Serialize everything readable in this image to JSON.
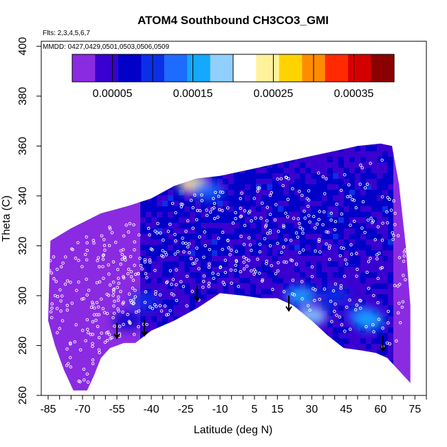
{
  "chart_data": {
    "type": "heatmap",
    "title": "ATOM4 Southbound CH3CO3_GMI",
    "flights_label": "Flts: 2,3,4,5,6,7",
    "dates_label": "MMDD: 0427,0429,0501,0503,0506,0509",
    "xlabel": "Latitude (deg N)",
    "ylabel": "Theta (C)",
    "xlim": [
      -88,
      80
    ],
    "ylim": [
      260,
      402
    ],
    "x_ticks": [
      -85,
      -70,
      -55,
      -40,
      -25,
      -10,
      5,
      15,
      30,
      45,
      60,
      75
    ],
    "x_ticks_labels": [
      "-85",
      "-70",
      "-55",
      "-40",
      "-25",
      "-10",
      "5",
      "15",
      "30",
      "45",
      "60",
      "75"
    ],
    "y_ticks": [
      260,
      280,
      300,
      320,
      340,
      360,
      380,
      400
    ],
    "y_ticks_labels": [
      "260",
      "280",
      "300",
      "320",
      "340",
      "360",
      "380",
      "400"
    ],
    "colorbar": {
      "range": [
        0,
        0.0004
      ],
      "ticks": [
        5e-05,
        0.00015,
        0.00025,
        0.00035
      ],
      "tick_labels": [
        "0.00005",
        "0.00015",
        "0.00025",
        "0.00035"
      ],
      "colors": [
        "#8a2be2",
        "#3a00d0",
        "#0000c8",
        "#0b2fe6",
        "#1e6bff",
        "#14a8ff",
        "#8fd0ff",
        "#ffffff",
        "#fff29a",
        "#ffd300",
        "#ff8c00",
        "#ff2a00",
        "#d40000",
        "#8b0000"
      ]
    },
    "upper_boundary": [
      {
        "lat": -84,
        "theta": 322
      },
      {
        "lat": -75,
        "theta": 327
      },
      {
        "lat": -62,
        "theta": 333
      },
      {
        "lat": -50,
        "theta": 336
      },
      {
        "lat": -40,
        "theta": 339
      },
      {
        "lat": -30,
        "theta": 344
      },
      {
        "lat": -20,
        "theta": 347
      },
      {
        "lat": -10,
        "theta": 348
      },
      {
        "lat": 0,
        "theta": 350
      },
      {
        "lat": 10,
        "theta": 352
      },
      {
        "lat": 20,
        "theta": 354
      },
      {
        "lat": 30,
        "theta": 356
      },
      {
        "lat": 40,
        "theta": 358
      },
      {
        "lat": 50,
        "theta": 360
      },
      {
        "lat": 60,
        "theta": 361
      },
      {
        "lat": 65,
        "theta": 360
      },
      {
        "lat": 68,
        "theta": 345
      },
      {
        "lat": 71,
        "theta": 320
      },
      {
        "lat": 73,
        "theta": 296
      }
    ],
    "lower_boundary": [
      {
        "lat": 73,
        "theta": 265
      },
      {
        "lat": 68,
        "theta": 270
      },
      {
        "lat": 63,
        "theta": 275
      },
      {
        "lat": 58,
        "theta": 277
      },
      {
        "lat": 52,
        "theta": 278
      },
      {
        "lat": 44,
        "theta": 279
      },
      {
        "lat": 37,
        "theta": 284
      },
      {
        "lat": 30,
        "theta": 290
      },
      {
        "lat": 22,
        "theta": 296
      },
      {
        "lat": 15,
        "theta": 299
      },
      {
        "lat": 8,
        "theta": 299
      },
      {
        "lat": 0,
        "theta": 300
      },
      {
        "lat": -10,
        "theta": 301
      },
      {
        "lat": -20,
        "theta": 295
      },
      {
        "lat": -30,
        "theta": 290
      },
      {
        "lat": -40,
        "theta": 286
      },
      {
        "lat": -47,
        "theta": 281
      },
      {
        "lat": -52,
        "theta": 281
      },
      {
        "lat": -55,
        "theta": 280
      },
      {
        "lat": -58,
        "theta": 279
      },
      {
        "lat": -62,
        "theta": 275
      },
      {
        "lat": -65,
        "theta": 268
      },
      {
        "lat": -68,
        "theta": 262
      },
      {
        "lat": -74,
        "theta": 262
      },
      {
        "lat": -78,
        "theta": 270
      },
      {
        "lat": -82,
        "theta": 280
      },
      {
        "lat": -85,
        "theta": 290
      }
    ],
    "concentration_patches": [
      {
        "lat": -22,
        "theta": 345,
        "value": 0.00024
      },
      {
        "lat": -15,
        "theta": 342,
        "value": 0.00012
      },
      {
        "lat": 25,
        "theta": 300,
        "value": 0.00016
      },
      {
        "lat": 30,
        "theta": 292,
        "value": 0.00018
      },
      {
        "lat": 52,
        "theta": 292,
        "value": 0.00014
      },
      {
        "lat": 55,
        "theta": 290,
        "value": 0.00016
      },
      {
        "lat": 40,
        "theta": 300,
        "value": 0.00011
      },
      {
        "lat": -50,
        "theta": 290,
        "value": 8e-05
      },
      {
        "lat": -43,
        "theta": 298,
        "value": 9e-05
      }
    ],
    "profile_markers": [
      {
        "lat": -55,
        "theta": 283
      },
      {
        "lat": -43,
        "theta": 284
      },
      {
        "lat": -20,
        "theta": 298
      },
      {
        "lat": 20,
        "theta": 294
      },
      {
        "lat": 61,
        "theta": 278
      }
    ]
  }
}
